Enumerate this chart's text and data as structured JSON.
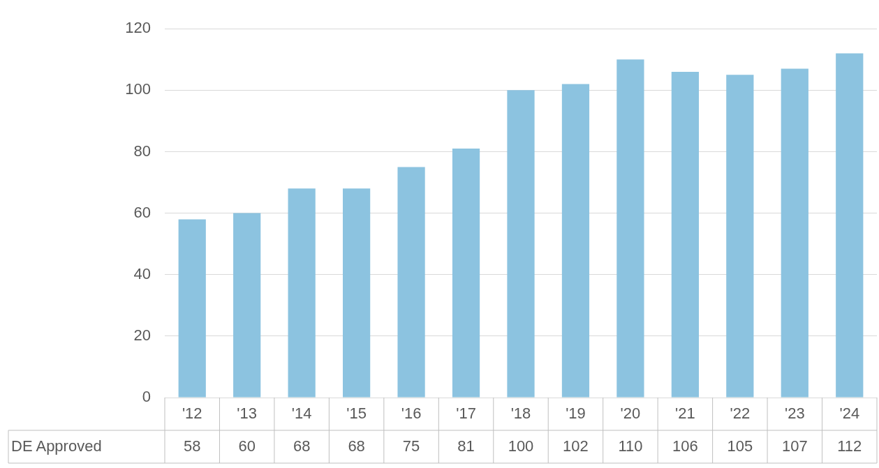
{
  "chart_data": {
    "type": "bar",
    "categories": [
      "'12",
      "'13",
      "'14",
      "'15",
      "'16",
      "'17",
      "'18",
      "'19",
      "'20",
      "'21",
      "'22",
      "'23",
      "'24"
    ],
    "series": [
      {
        "name": "DE Approved",
        "color": "#8cc3e0",
        "values": [
          58,
          60,
          68,
          68,
          75,
          81,
          100,
          102,
          110,
          106,
          105,
          107,
          112
        ]
      }
    ],
    "ylim": [
      0,
      120
    ],
    "yticks": [
      0,
      20,
      40,
      60,
      80,
      100,
      120
    ],
    "grid": "y",
    "legend": false,
    "data_labels": true
  }
}
